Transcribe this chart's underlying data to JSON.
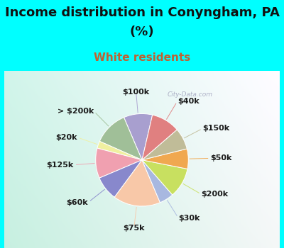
{
  "title_line1": "Income distribution in Conyngham, PA",
  "title_line2": "(%)",
  "subtitle": "White residents",
  "bg_outer": "#00FFFF",
  "title_color": "#111111",
  "subtitle_color": "#c06030",
  "title_fontsize": 13,
  "subtitle_fontsize": 11,
  "label_fontsize": 8,
  "labels": [
    "$100k",
    "> $200k",
    "$20k",
    "$125k",
    "$60k",
    "$75k",
    "$30k",
    "$200k",
    "$50k",
    "$150k",
    "$40k"
  ],
  "sizes": [
    10.0,
    12.0,
    2.5,
    10.5,
    8.5,
    16.5,
    5.0,
    10.5,
    7.0,
    7.5,
    10.0
  ],
  "colors": [
    "#a89fcf",
    "#a0bf98",
    "#f0f0a0",
    "#f0a0b0",
    "#8888cc",
    "#f8c8a8",
    "#a8b8e0",
    "#c8e060",
    "#f0a850",
    "#c0bc98",
    "#e08080"
  ],
  "startangle": 77,
  "wedge_edge_color": "white",
  "wedge_linewidth": 0.7
}
